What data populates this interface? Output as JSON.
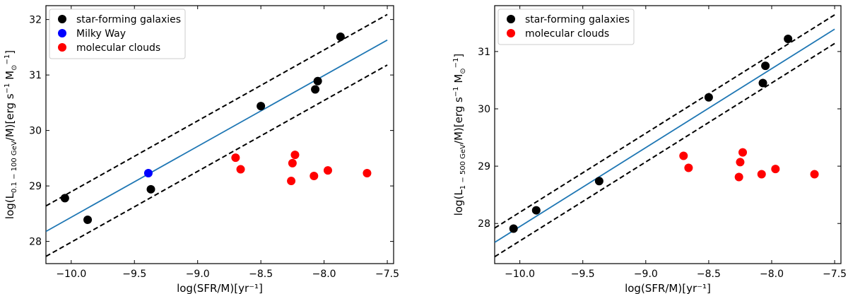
{
  "chart_data": [
    {
      "type": "scatter",
      "panel": "left",
      "xlabel": "log(SFR/M)[yr⁻¹]",
      "ylabel": "log(L_0.1–100 GeV/M)[erg s⁻¹ M⊙⁻¹]",
      "ylabel_main": "log(L",
      "ylabel_sub": "0.1 − 100 GeV",
      "ylabel_rest": "/M)[erg s",
      "ylabel_sup1": "−1",
      "ylabel_msun": " M",
      "ylabel_sun_sub": "⊙",
      "ylabel_sup2": "−1",
      "ylabel_close": "]",
      "xlim": [
        -10.2,
        -7.45
      ],
      "ylim": [
        27.6,
        32.25
      ],
      "xticks": [
        -10.0,
        -9.5,
        -9.0,
        -8.5,
        -8.0,
        -7.5
      ],
      "xtick_labels": [
        "−10.0",
        "−9.5",
        "−9.0",
        "−8.5",
        "−8.0",
        "−7.5"
      ],
      "yticks": [
        28,
        29,
        30,
        31,
        32
      ],
      "ytick_labels": [
        "28",
        "29",
        "30",
        "31",
        "32"
      ],
      "fit_line": {
        "x": [
          -10.2,
          -7.5
        ],
        "y": [
          28.18,
          31.63
        ]
      },
      "band_upper": {
        "x": [
          -10.2,
          -7.5
        ],
        "y": [
          28.64,
          32.09
        ]
      },
      "band_lower": {
        "x": [
          -10.2,
          -7.5
        ],
        "y": [
          27.73,
          31.18
        ]
      },
      "series": [
        {
          "name": "star-forming galaxies",
          "color": "#000000",
          "points": [
            [
              -10.05,
              28.78
            ],
            [
              -9.87,
              28.39
            ],
            [
              -9.37,
              28.94
            ],
            [
              -8.5,
              30.44
            ],
            [
              -8.07,
              30.74
            ],
            [
              -8.05,
              30.89
            ],
            [
              -7.87,
              31.69
            ]
          ]
        },
        {
          "name": "Milky Way",
          "color": "#0000ff",
          "points": [
            [
              -9.39,
              29.23
            ]
          ]
        },
        {
          "name": "molecular clouds",
          "color": "#ff0000",
          "points": [
            [
              -8.7,
              29.51
            ],
            [
              -8.66,
              29.3
            ],
            [
              -8.26,
              29.09
            ],
            [
              -8.25,
              29.41
            ],
            [
              -8.23,
              29.56
            ],
            [
              -8.08,
              29.18
            ],
            [
              -7.97,
              29.28
            ],
            [
              -7.66,
              29.23
            ]
          ]
        }
      ],
      "legend": [
        "star-forming galaxies",
        "Milky Way",
        "molecular clouds"
      ],
      "legend_colors": [
        "#000000",
        "#0000ff",
        "#ff0000"
      ],
      "legend_loc": "top-left",
      "fit_color": "#1f77b4"
    },
    {
      "type": "scatter",
      "panel": "right",
      "xlabel": "log(SFR/M)[yr⁻¹]",
      "ylabel": "log(L_1–500 GeV/M)[erg s⁻¹ M⊙⁻¹]",
      "ylabel_main": "log(L",
      "ylabel_sub": "1 − 500 GeV",
      "ylabel_rest": "/M)[erg s",
      "ylabel_sup1": "−1",
      "ylabel_msun": " M",
      "ylabel_sun_sub": "⊙",
      "ylabel_sup2": "−1",
      "ylabel_close": "]",
      "xlim": [
        -10.2,
        -7.45
      ],
      "ylim": [
        27.3,
        31.8
      ],
      "xticks": [
        -10.0,
        -9.5,
        -9.0,
        -8.5,
        -8.0,
        -7.5
      ],
      "xtick_labels": [
        "−10.0",
        "−9.5",
        "−9.0",
        "−8.5",
        "−8.0",
        "−7.5"
      ],
      "yticks": [
        28,
        29,
        30,
        31
      ],
      "ytick_labels": [
        "28",
        "29",
        "30",
        "31"
      ],
      "fit_line": {
        "x": [
          -10.2,
          -7.5
        ],
        "y": [
          27.67,
          31.39
        ]
      },
      "band_upper": {
        "x": [
          -10.2,
          -7.5
        ],
        "y": [
          27.92,
          31.64
        ]
      },
      "band_lower": {
        "x": [
          -10.2,
          -7.5
        ],
        "y": [
          27.42,
          31.14
        ]
      },
      "series": [
        {
          "name": "star-forming galaxies",
          "color": "#000000",
          "points": [
            [
              -10.05,
              27.91
            ],
            [
              -9.87,
              28.23
            ],
            [
              -9.37,
              28.74
            ],
            [
              -8.5,
              30.2
            ],
            [
              -8.07,
              30.45
            ],
            [
              -8.05,
              30.75
            ],
            [
              -7.87,
              31.22
            ]
          ]
        },
        {
          "name": "molecular clouds",
          "color": "#ff0000",
          "points": [
            [
              -8.7,
              29.18
            ],
            [
              -8.66,
              28.97
            ],
            [
              -8.26,
              28.81
            ],
            [
              -8.25,
              29.07
            ],
            [
              -8.23,
              29.24
            ],
            [
              -8.08,
              28.86
            ],
            [
              -7.97,
              28.95
            ],
            [
              -7.66,
              28.86
            ]
          ]
        }
      ],
      "legend": [
        "star-forming galaxies",
        "molecular clouds"
      ],
      "legend_colors": [
        "#000000",
        "#ff0000"
      ],
      "legend_loc": "top-left",
      "fit_color": "#1f77b4"
    }
  ]
}
